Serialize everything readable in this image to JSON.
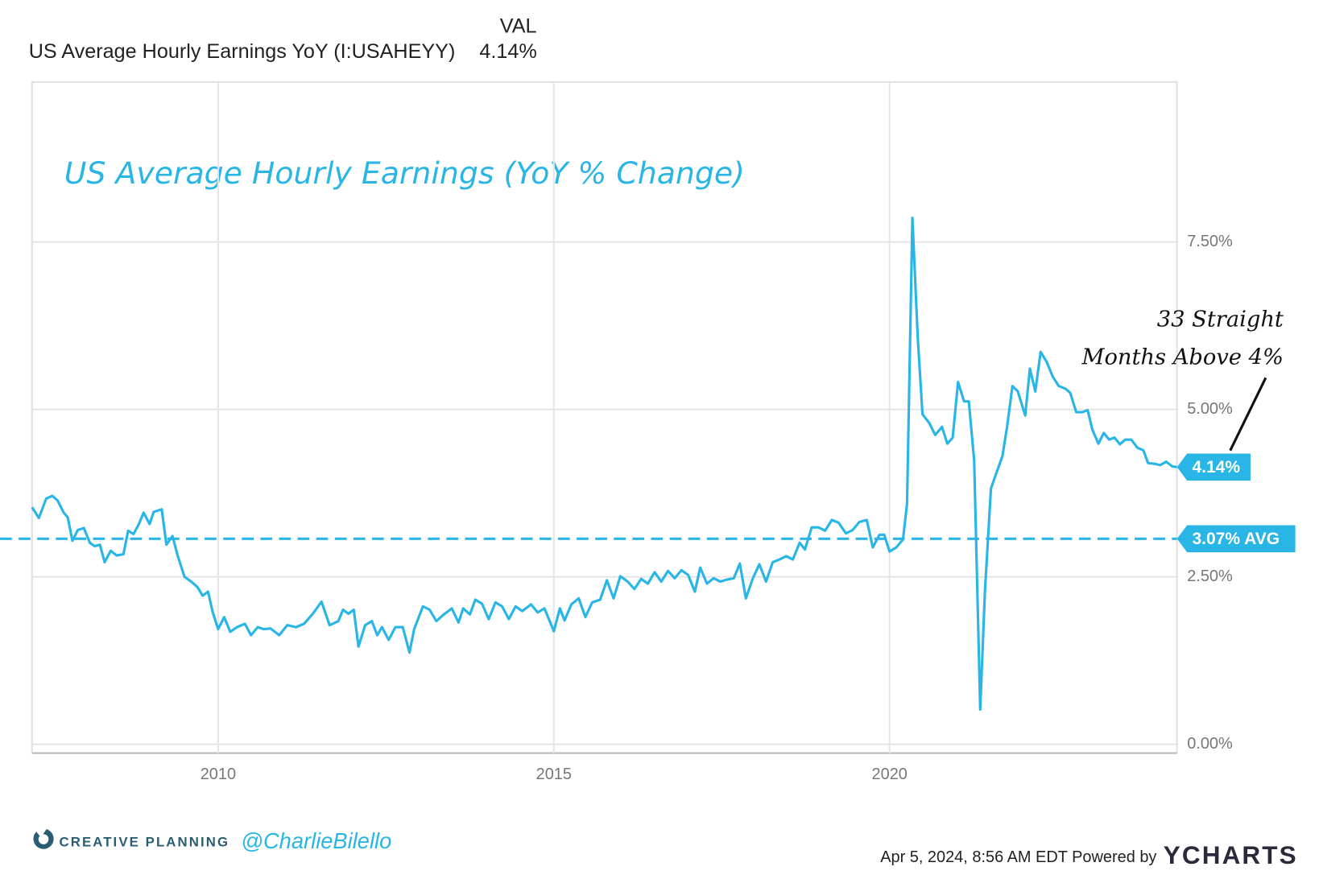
{
  "chart_data": {
    "type": "line",
    "title": "US Average Hourly Earnings (YoY % Change)",
    "legend": {
      "header": "VAL",
      "value_label": "4.14%"
    },
    "annotation": [
      "33 Straight",
      "Months Above 4%"
    ],
    "average": {
      "value": 3.07,
      "label": "3.07% AVG"
    },
    "end_label": {
      "value": 4.14,
      "label": "4.14%"
    },
    "footer": {
      "brand": "CREATIVE PLANNING",
      "handle": "@CharlieBilello",
      "timestamp": "Apr 5, 2024, 8:56 AM EDT Powered by",
      "source": "YCHARTS"
    },
    "xlim": [
      2007.23,
      2024.28
    ],
    "xticks": [
      2010,
      2015,
      2020
    ],
    "ylim": [
      -0.13,
      9.89
    ],
    "yticks": [
      {
        "value": 0,
        "label": "0.00%"
      },
      {
        "value": 2.5,
        "label": "2.50%"
      },
      {
        "value": 5,
        "label": "5.00%"
      },
      {
        "value": 7.5,
        "label": "7.50%"
      }
    ],
    "grid": true,
    "x": [
      2007.23,
      2007.33,
      2007.44,
      2007.53,
      2007.61,
      2007.7,
      2007.76,
      2007.83,
      2007.91,
      2008.0,
      2008.09,
      2008.16,
      2008.24,
      2008.31,
      2008.4,
      2008.49,
      2008.59,
      2008.66,
      2008.74,
      2008.82,
      2008.89,
      2008.98,
      2009.04,
      2009.16,
      2009.23,
      2009.32,
      2009.4,
      2009.5,
      2009.6,
      2009.69,
      2009.77,
      2009.85,
      2009.92,
      2010.0,
      2010.09,
      2010.18,
      2010.28,
      2010.4,
      2010.49,
      2010.59,
      2010.68,
      2010.78,
      2010.91,
      2011.03,
      2011.16,
      2011.28,
      2011.41,
      2011.54,
      2011.66,
      2011.79,
      2011.86,
      2011.94,
      2012.02,
      2012.09,
      2012.19,
      2012.29,
      2012.37,
      2012.44,
      2012.54,
      2012.64,
      2012.75,
      2012.85,
      2012.92,
      2013.05,
      2013.15,
      2013.25,
      2013.35,
      2013.48,
      2013.58,
      2013.65,
      2013.75,
      2013.83,
      2013.93,
      2014.03,
      2014.13,
      2014.23,
      2014.33,
      2014.43,
      2014.53,
      2014.66,
      2014.76,
      2014.86,
      2015.0,
      2015.09,
      2015.16,
      2015.26,
      2015.37,
      2015.47,
      2015.57,
      2015.69,
      2015.79,
      2015.89,
      2015.99,
      2016.1,
      2016.2,
      2016.3,
      2016.4,
      2016.5,
      2016.6,
      2016.7,
      2016.8,
      2016.9,
      2017.0,
      2017.1,
      2017.18,
      2017.28,
      2017.38,
      2017.48,
      2017.58,
      2017.68,
      2017.77,
      2017.86,
      2017.96,
      2018.06,
      2018.16,
      2018.26,
      2018.36,
      2018.46,
      2018.56,
      2018.66,
      2018.74,
      2018.84,
      2018.94,
      2019.04,
      2019.14,
      2019.24,
      2019.35,
      2019.45,
      2019.55,
      2019.66,
      2019.75,
      2019.85,
      2019.92,
      2020.0,
      2020.1,
      2020.2,
      2020.26,
      2020.34,
      2020.42,
      2020.49,
      2020.59,
      2020.68,
      2020.78,
      2020.86,
      2020.94,
      2021.02,
      2021.11,
      2021.18,
      2021.26,
      2021.35,
      2021.42,
      2021.51,
      2021.59,
      2021.68,
      2021.75,
      2021.83,
      2021.91,
      2022.02,
      2022.09,
      2022.17,
      2022.25,
      2022.34,
      2022.43,
      2022.52,
      2022.62,
      2022.69,
      2022.78,
      2022.87,
      2022.95,
      2023.02,
      2023.11,
      2023.19,
      2023.27,
      2023.35,
      2023.43,
      2023.51,
      2023.6,
      2023.69,
      2023.78,
      2023.85,
      2023.94,
      2024.03,
      2024.12,
      2024.21,
      2024.28
    ],
    "series": [
      {
        "name": "US Average Hourly Earnings YoY (I:USAHEYY)",
        "color": "#29b6e6",
        "values": [
          3.54,
          3.38,
          3.67,
          3.71,
          3.64,
          3.46,
          3.39,
          3.04,
          3.2,
          3.23,
          3.01,
          2.96,
          2.98,
          2.72,
          2.89,
          2.82,
          2.84,
          3.19,
          3.14,
          3.29,
          3.46,
          3.29,
          3.47,
          3.51,
          2.98,
          3.11,
          2.81,
          2.5,
          2.43,
          2.35,
          2.22,
          2.28,
          1.97,
          1.72,
          1.9,
          1.68,
          1.75,
          1.8,
          1.63,
          1.75,
          1.72,
          1.73,
          1.63,
          1.78,
          1.75,
          1.8,
          1.95,
          2.13,
          1.78,
          1.84,
          2.01,
          1.95,
          2.01,
          1.46,
          1.78,
          1.84,
          1.63,
          1.75,
          1.56,
          1.75,
          1.75,
          1.37,
          1.72,
          2.06,
          2.01,
          1.84,
          1.93,
          2.03,
          1.82,
          2.03,
          1.94,
          2.16,
          2.1,
          1.87,
          2.12,
          2.06,
          1.87,
          2.06,
          1.99,
          2.09,
          1.97,
          2.03,
          1.69,
          2.03,
          1.85,
          2.09,
          2.18,
          1.9,
          2.12,
          2.16,
          2.45,
          2.18,
          2.51,
          2.43,
          2.32,
          2.47,
          2.4,
          2.57,
          2.43,
          2.59,
          2.48,
          2.6,
          2.53,
          2.28,
          2.64,
          2.4,
          2.48,
          2.43,
          2.46,
          2.48,
          2.7,
          2.18,
          2.47,
          2.69,
          2.43,
          2.72,
          2.76,
          2.81,
          2.76,
          3.01,
          2.91,
          3.24,
          3.24,
          3.19,
          3.35,
          3.31,
          3.15,
          3.2,
          3.32,
          3.35,
          2.94,
          3.13,
          3.13,
          2.88,
          2.94,
          3.06,
          3.59,
          7.86,
          6.07,
          4.93,
          4.8,
          4.62,
          4.74,
          4.49,
          4.58,
          5.41,
          5.12,
          5.12,
          4.24,
          0.52,
          2.28,
          3.82,
          4.05,
          4.3,
          4.74,
          5.35,
          5.27,
          4.91,
          5.61,
          5.27,
          5.86,
          5.71,
          5.49,
          5.35,
          5.31,
          5.25,
          4.96,
          4.96,
          4.99,
          4.7,
          4.49,
          4.65,
          4.55,
          4.58,
          4.48,
          4.55,
          4.55,
          4.43,
          4.39,
          4.2,
          4.19,
          4.17,
          4.22,
          4.15,
          4.14
        ]
      }
    ]
  }
}
